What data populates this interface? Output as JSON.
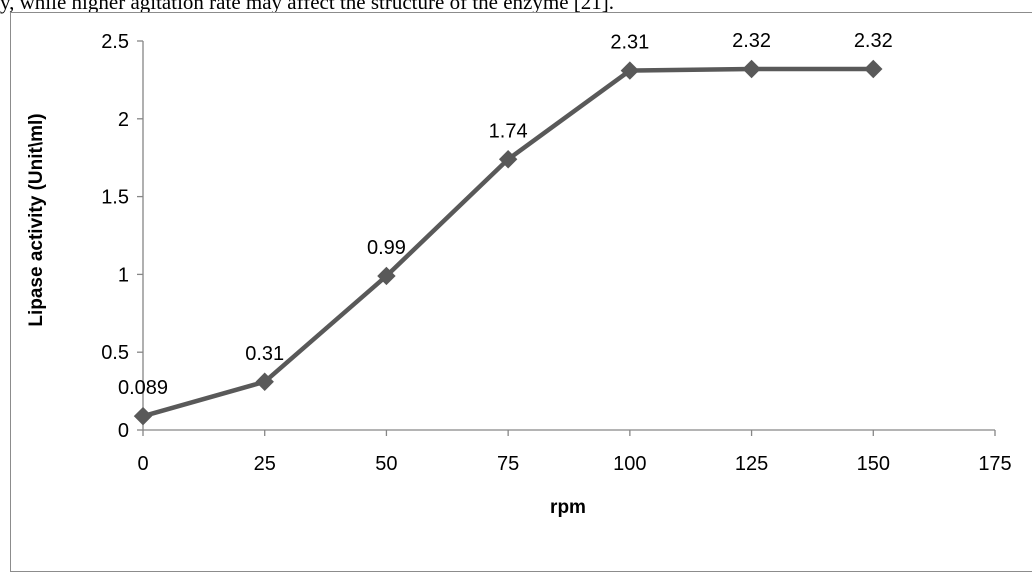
{
  "page": {
    "caption_fragment": "y, while higher agitation rate may affect the structure of the enzyme [21]."
  },
  "chart_data": {
    "type": "line",
    "title": "",
    "xlabel": "rpm",
    "ylabel": "Lipase activity (Unit\\ml)",
    "xlim": [
      0,
      175
    ],
    "ylim": [
      0,
      2.5
    ],
    "x_ticks": [
      0,
      25,
      50,
      75,
      100,
      125,
      150,
      175
    ],
    "y_ticks": [
      0,
      0.5,
      1,
      1.5,
      2,
      2.5
    ],
    "grid": false,
    "legend": "none",
    "marker": "diamond",
    "series_color": "#595959",
    "series": [
      {
        "x": [
          0,
          25,
          50,
          75,
          100,
          125,
          150
        ],
        "y": [
          0.089,
          0.31,
          0.99,
          1.74,
          2.31,
          2.32,
          2.32
        ],
        "labels": [
          "0.089",
          "0.31",
          "0.99",
          "1.74",
          "2.31",
          "2.32",
          "2.32"
        ]
      }
    ]
  }
}
